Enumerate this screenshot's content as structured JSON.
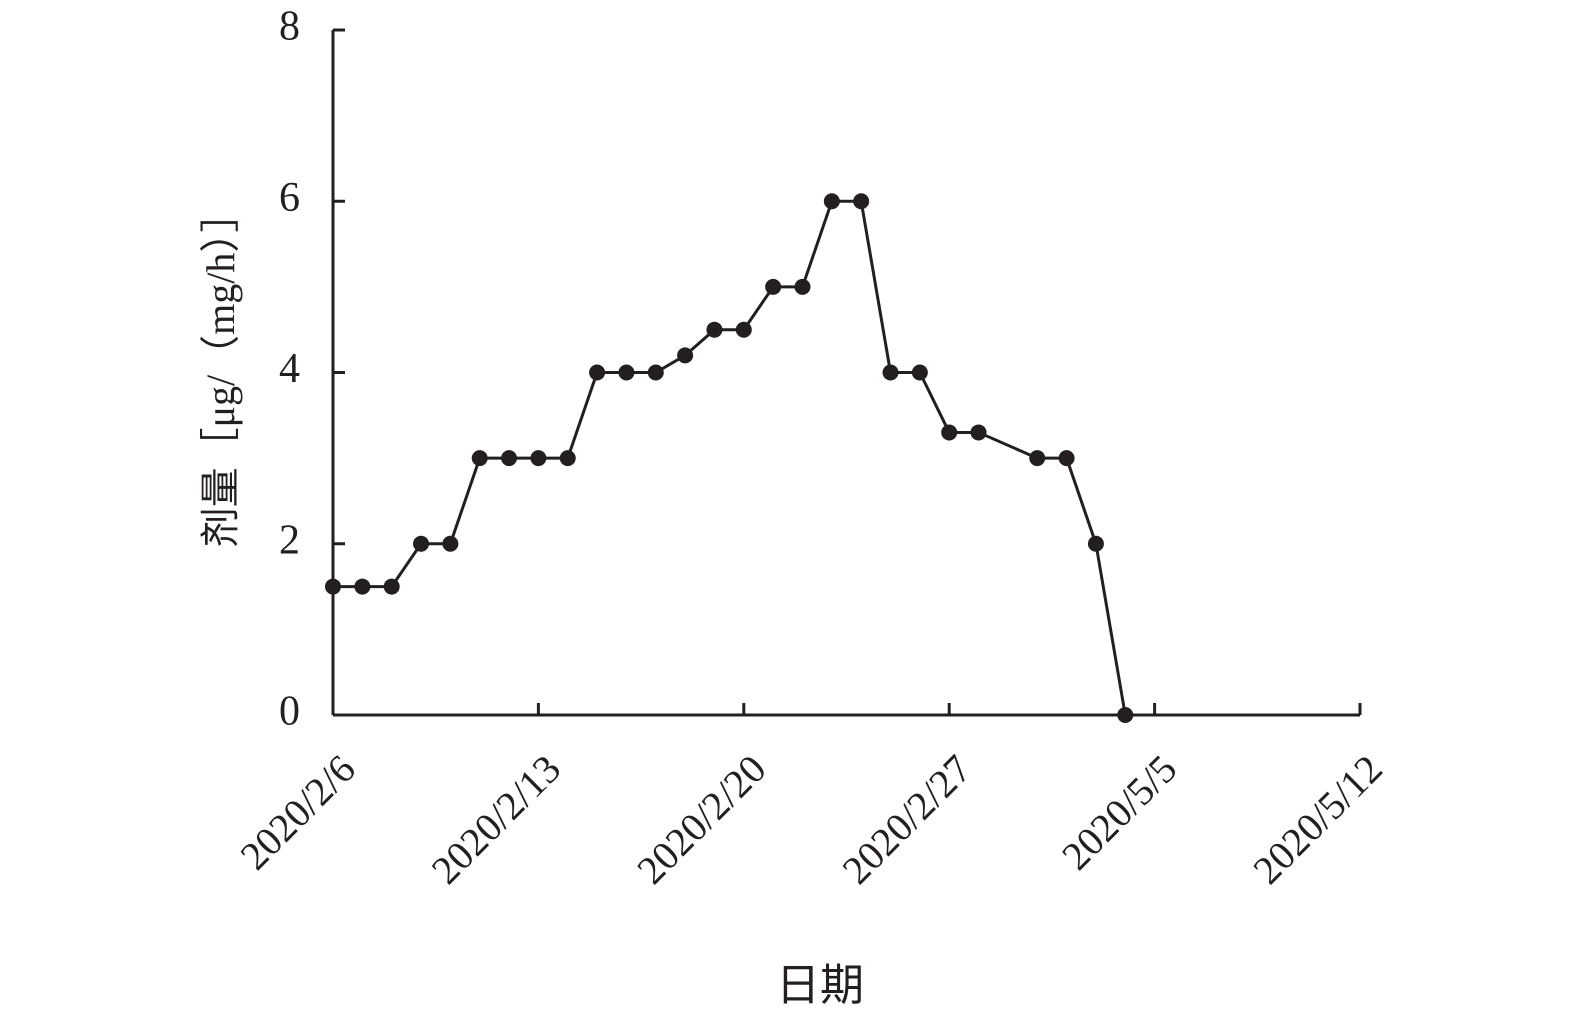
{
  "chart_data": {
    "type": "line",
    "x_label": "日期",
    "y_label": "剂量［μg/（mg/h）］",
    "x": [
      0,
      1,
      2,
      3,
      4,
      5,
      6,
      7,
      8,
      9,
      10,
      11,
      12,
      13,
      14,
      15,
      16,
      17,
      18,
      19,
      20,
      21,
      22,
      24,
      25,
      26,
      27
    ],
    "series": [
      {
        "color": "#231f20",
        "values": [
          1.5,
          1.5,
          1.5,
          2,
          2,
          3,
          3,
          3,
          3,
          4,
          4,
          4,
          4.2,
          4.5,
          4.5,
          5,
          5,
          6,
          6,
          4,
          4,
          3.3,
          3.3,
          3,
          3,
          2,
          0
        ]
      }
    ],
    "xlim": [
      0,
      35
    ],
    "xticks": [
      {
        "value": 0,
        "label": "2020/2/6"
      },
      {
        "value": 7,
        "label": "2020/2/13"
      },
      {
        "value": 14,
        "label": "2020/2/20"
      },
      {
        "value": 21,
        "label": "2020/2/27"
      },
      {
        "value": 28,
        "label": "2020/5/5"
      },
      {
        "value": 35,
        "label": "2020/5/12"
      }
    ],
    "ylim": [
      0,
      8
    ],
    "yticks": [
      0,
      2,
      4,
      6,
      8
    ]
  }
}
